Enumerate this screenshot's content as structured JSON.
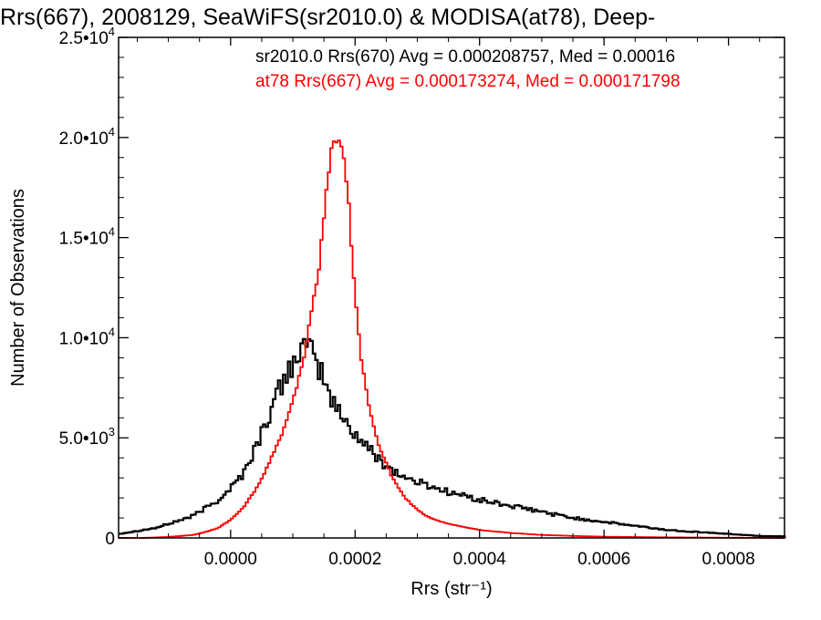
{
  "chart_data": {
    "type": "line",
    "title": "Rrs(667), 2008129, SeaWiFS(sr2010.0) & MODISA(at78), Deep-",
    "xlabel": "Rrs (str⁻¹)",
    "ylabel": "Number of Observations",
    "xlim": [
      -0.00018,
      0.00089
    ],
    "ylim": [
      0,
      25000
    ],
    "grid": false,
    "legend_position": "top-right",
    "x_ticks": [
      {
        "value": 0.0,
        "label": "0.0000"
      },
      {
        "value": 0.0002,
        "label": "0.0002"
      },
      {
        "value": 0.0004,
        "label": "0.0004"
      },
      {
        "value": 0.0006,
        "label": "0.0006"
      },
      {
        "value": 0.0008,
        "label": "0.0008"
      }
    ],
    "y_ticks": [
      {
        "value": 0,
        "mantissa": "0",
        "exponent": ""
      },
      {
        "value": 5000,
        "mantissa": "5.0•10",
        "exponent": "3"
      },
      {
        "value": 10000,
        "mantissa": "1.0•10",
        "exponent": "4"
      },
      {
        "value": 15000,
        "mantissa": "1.5•10",
        "exponent": "4"
      },
      {
        "value": 20000,
        "mantissa": "2.0•10",
        "exponent": "4"
      },
      {
        "value": 25000,
        "mantissa": "2.5•10",
        "exponent": "4"
      }
    ],
    "series": [
      {
        "key": "seawifs",
        "name": "sr2010.0 Rrs(670) Avg = 0.000208757, Med = 0.00016",
        "color": "#000000",
        "x": [
          -0.00018,
          -0.00016,
          -0.00014,
          -0.00012,
          -0.0001,
          -8e-05,
          -6e-05,
          -4e-05,
          -2e-05,
          0.0,
          2e-05,
          4e-05,
          6e-05,
          8e-05,
          0.0001,
          0.00011,
          0.00012,
          0.00013,
          0.00014,
          0.00015,
          0.00016,
          0.00018,
          0.0002,
          0.00022,
          0.00024,
          0.00026,
          0.00028,
          0.0003,
          0.00032,
          0.00035,
          0.0004,
          0.00045,
          0.0005,
          0.00055,
          0.0006,
          0.00065,
          0.0007,
          0.00075,
          0.0008,
          0.00085,
          0.00089
        ],
        "y": [
          200,
          300,
          400,
          500,
          700,
          900,
          1100,
          1500,
          1900,
          2500,
          3200,
          4500,
          6000,
          7500,
          8800,
          9300,
          9500,
          9200,
          8600,
          8000,
          7000,
          6000,
          5200,
          4500,
          3900,
          3400,
          3000,
          2800,
          2600,
          2300,
          1900,
          1600,
          1300,
          1000,
          800,
          600,
          400,
          300,
          200,
          100,
          80
        ]
      },
      {
        "key": "modisa",
        "name": "at78 Rrs(667) Avg = 0.000173274, Med = 0.000171798",
        "color": "#ff0000",
        "x": [
          -0.00018,
          -0.00014,
          -0.0001,
          -6e-05,
          -4e-05,
          -2e-05,
          0.0,
          2e-05,
          4e-05,
          6e-05,
          8e-05,
          0.0001,
          0.00012,
          0.00014,
          0.00015,
          0.00016,
          0.00017,
          0.00018,
          0.00019,
          0.0002,
          0.00021,
          0.00022,
          0.00023,
          0.00024,
          0.00026,
          0.00028,
          0.0003,
          0.00032,
          0.00035,
          0.0004,
          0.00045,
          0.0005,
          0.00055,
          0.0006,
          0.0007,
          0.0008,
          0.00089
        ],
        "y": [
          0,
          0,
          50,
          150,
          300,
          500,
          900,
          1500,
          2400,
          3600,
          5000,
          6800,
          9400,
          13000,
          16000,
          19000,
          20000,
          19500,
          16500,
          12000,
          9000,
          7000,
          5500,
          4500,
          3000,
          2000,
          1400,
          1000,
          700,
          400,
          250,
          150,
          100,
          60,
          30,
          10,
          0
        ]
      }
    ]
  }
}
